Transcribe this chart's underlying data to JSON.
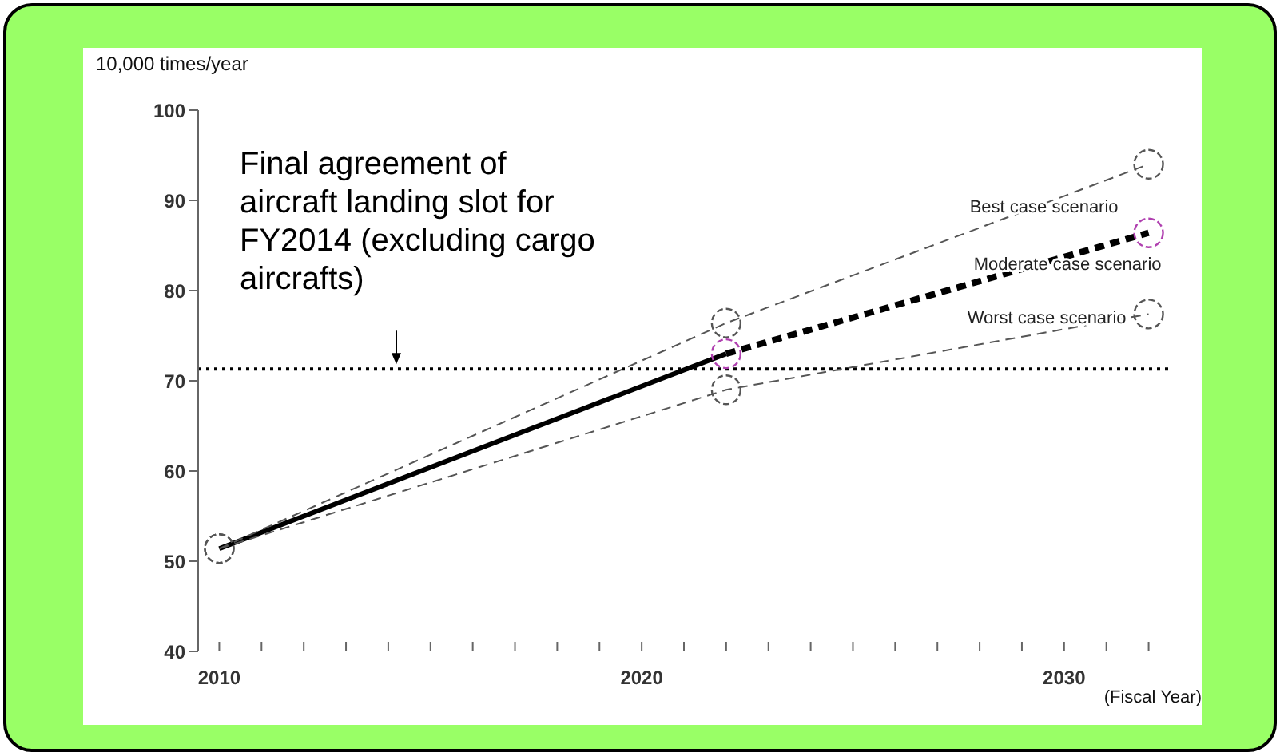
{
  "chart_data": {
    "type": "line",
    "ylabel": "10,000 times/year",
    "xlabel": "(Fiscal Year)",
    "xlim": [
      2009.5,
      2032.5
    ],
    "xticks": [
      2010,
      {
        "value": 2011,
        "label": null
      },
      {
        "value": 2012,
        "label": null
      },
      {
        "value": 2013,
        "label": null
      },
      {
        "value": 2014,
        "label": null
      },
      {
        "value": 2015,
        "label": null
      },
      {
        "value": 2016,
        "label": null
      },
      {
        "value": 2017,
        "label": null
      },
      {
        "value": 2018,
        "label": null
      },
      {
        "value": 2019,
        "label": null
      },
      2020,
      {
        "value": 2021,
        "label": null
      },
      {
        "value": 2022,
        "label": null
      },
      {
        "value": 2023,
        "label": null
      },
      {
        "value": 2024,
        "label": null
      },
      {
        "value": 2025,
        "label": null
      },
      {
        "value": 2026,
        "label": null
      },
      {
        "value": 2027,
        "label": null
      },
      {
        "value": 2028,
        "label": null
      },
      {
        "value": 2029,
        "label": null
      },
      2030,
      {
        "value": 2031,
        "label": null
      },
      {
        "value": 2032,
        "label": null
      }
    ],
    "ylim": [
      40,
      100
    ],
    "yticks": [
      40,
      50,
      60,
      70,
      80,
      90,
      100
    ],
    "series": [
      {
        "color": "#000000",
        "line_style": "solid",
        "marker": "none",
        "x": [
          2010,
          2022
        ],
        "values": [
          51.4,
          73.0
        ]
      },
      {
        "name": "Best case scenario",
        "color": "#555555",
        "line_style": "dashed",
        "marker": "circle",
        "x": [
          2010,
          2022,
          2032
        ],
        "values": [
          51.4,
          76.4,
          94.0
        ]
      },
      {
        "name": "Moderate case scenario",
        "color": "#000000",
        "line_style": "dashed",
        "marker": "none",
        "x": [
          2022,
          2032
        ],
        "values": [
          73.0,
          86.4
        ]
      },
      {
        "name": "Worst case scenario",
        "color": "#555555",
        "line_style": "dashed",
        "marker": "circle",
        "x": [
          2010,
          2022,
          2032
        ],
        "values": [
          51.4,
          69.0,
          77.4
        ]
      },
      {
        "type": "scatter",
        "color": "#b040b0",
        "marker": "circle",
        "x": [
          2022,
          2032
        ],
        "values": [
          73.0,
          86.4
        ]
      }
    ],
    "ref_lines": [
      {
        "axis": "y",
        "value": 71.3,
        "label": "Final agreement of aircraft landing slot for FY2014 (excluding cargo aircrafts)",
        "line_style": "dotted",
        "color": "#000000"
      }
    ]
  }
}
